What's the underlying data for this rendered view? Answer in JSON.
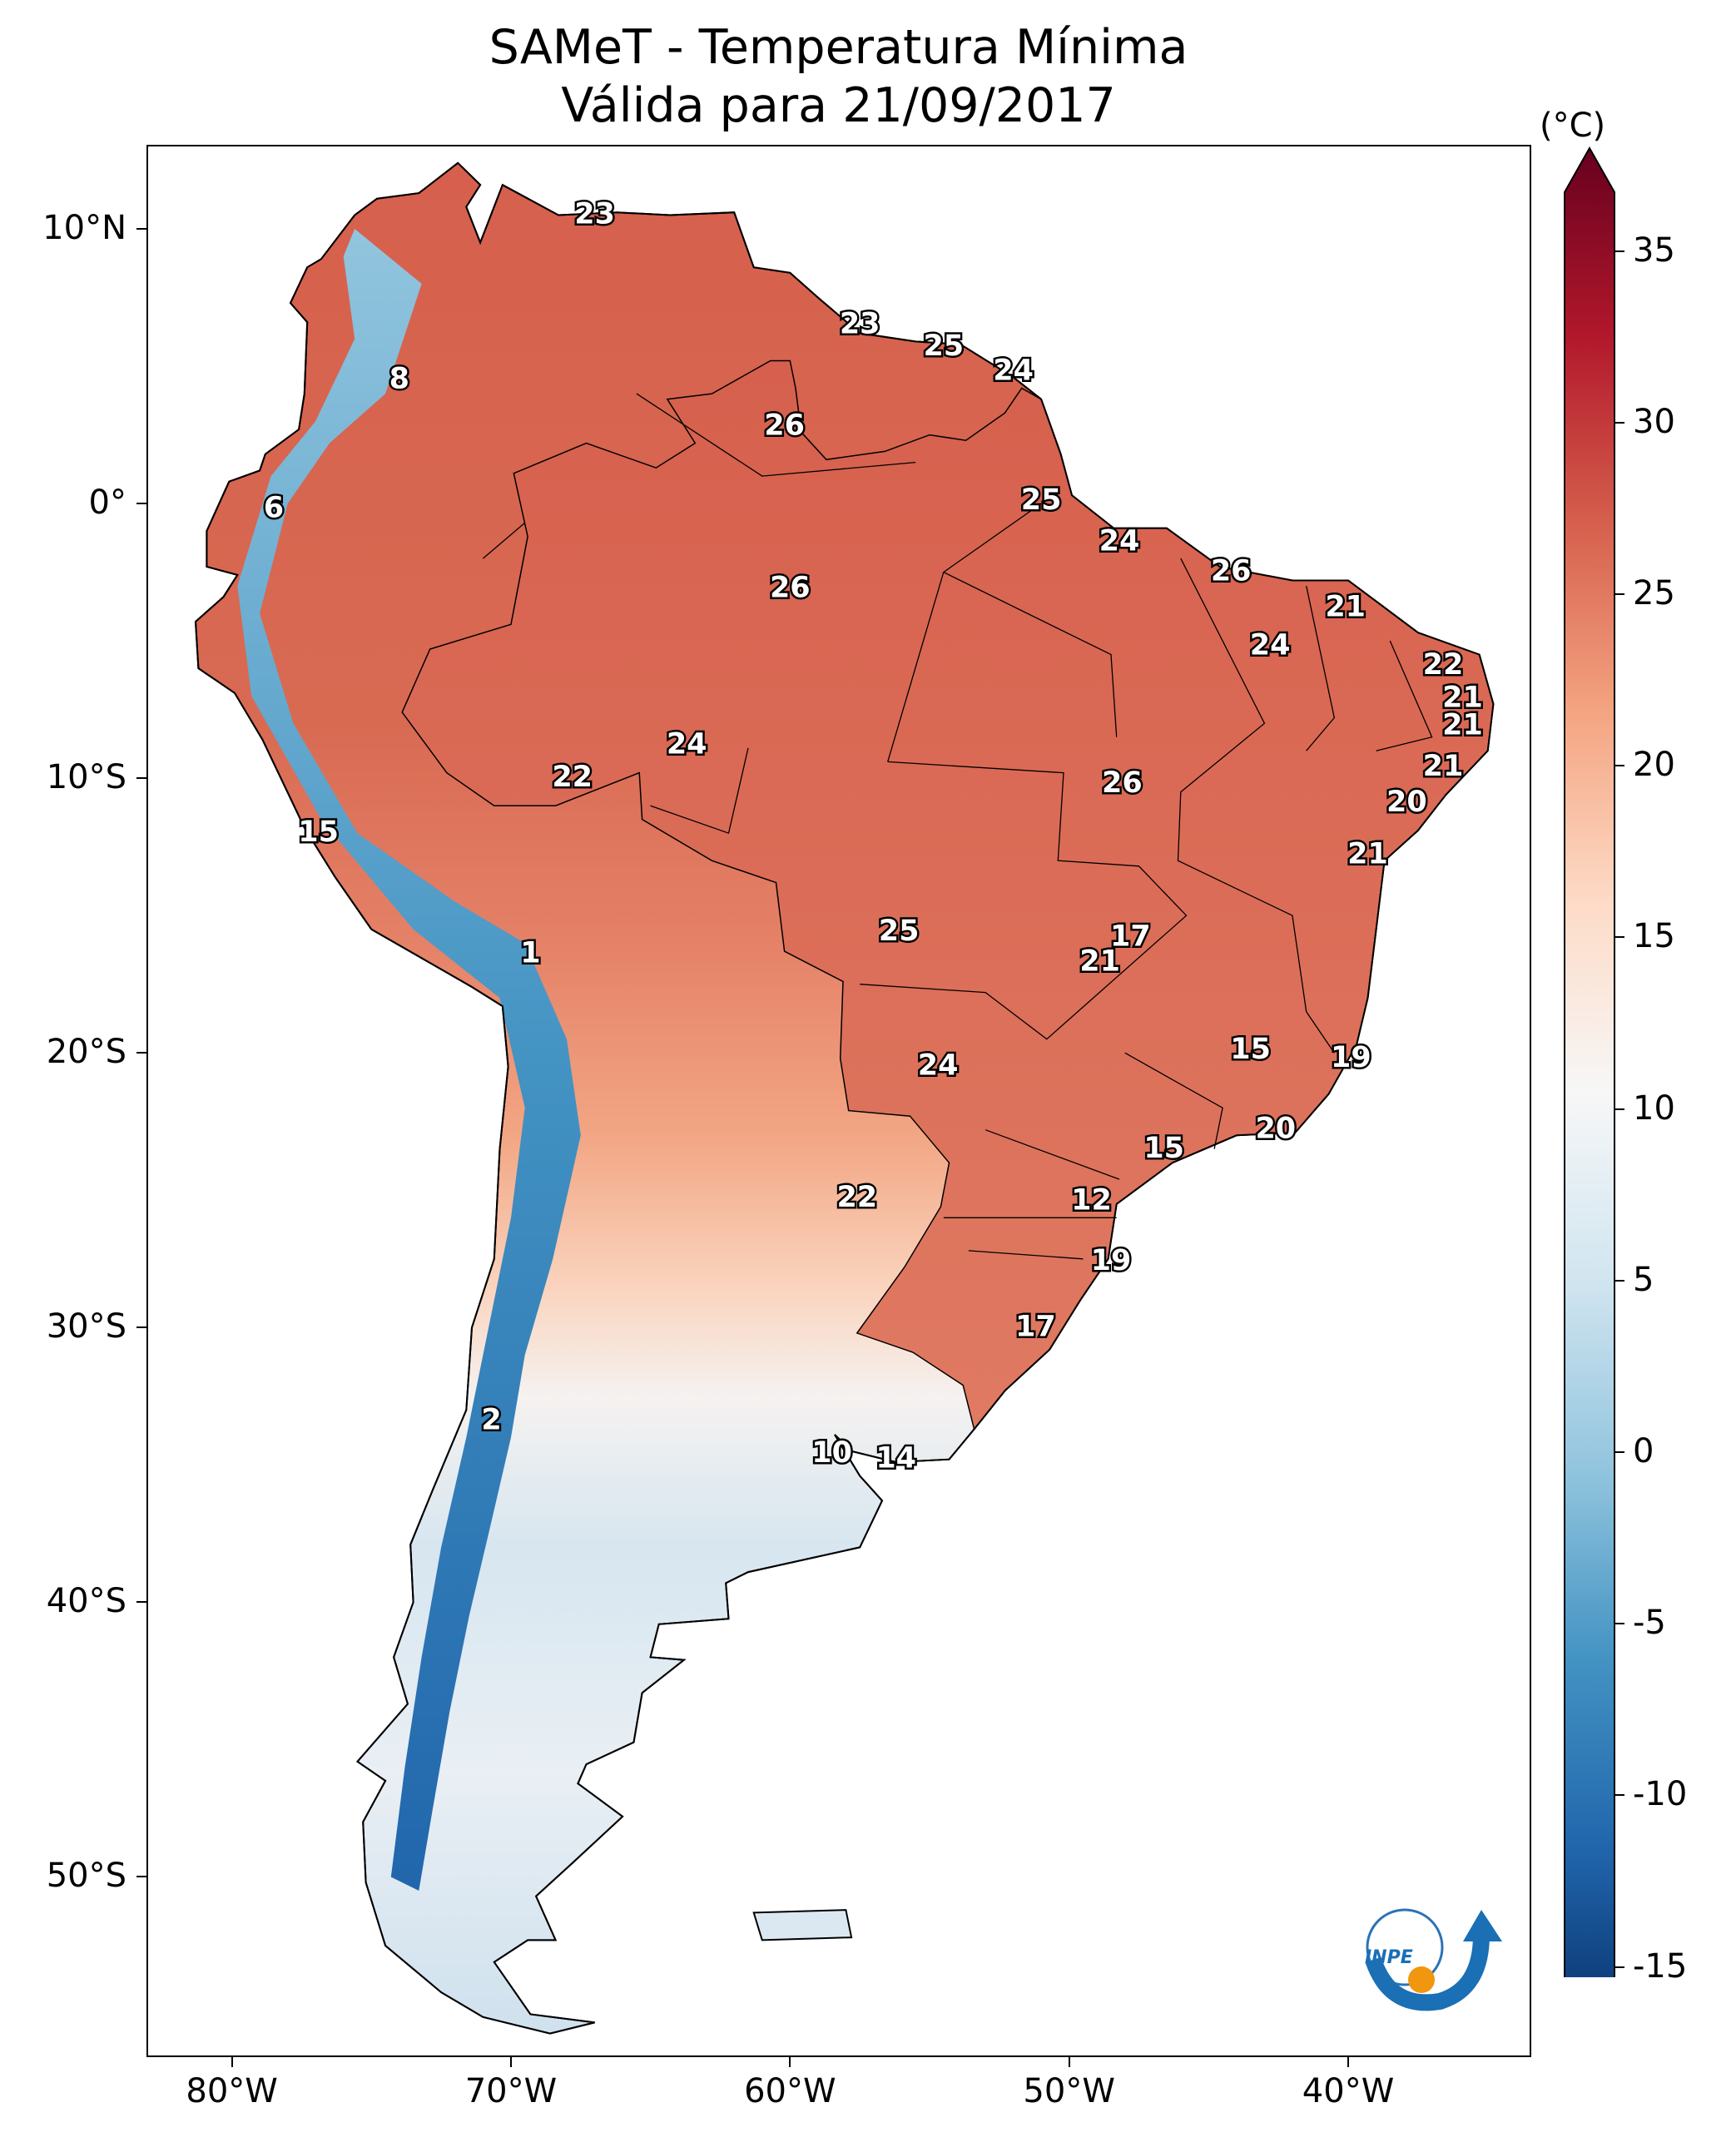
{
  "title": {
    "line1": "SAMeT - Temperatura Mínima",
    "line2": "Válida para 21/09/2017"
  },
  "axes": {
    "lat_labels": [
      "10°N",
      "0°",
      "10°S",
      "20°S",
      "30°S",
      "40°S",
      "50°S"
    ],
    "lon_labels": [
      "80°W",
      "70°W",
      "60°W",
      "50°W",
      "40°W"
    ]
  },
  "colorbar": {
    "unit": "(°C)",
    "min": -17,
    "max": 38,
    "ticks": [
      "35",
      "30",
      "25",
      "20",
      "15",
      "10",
      "5",
      "0",
      "-5",
      "-10",
      "-15"
    ],
    "tick_values": [
      35,
      30,
      25,
      20,
      15,
      10,
      5,
      0,
      -5,
      -10,
      -15
    ],
    "colors": [
      "#08306b",
      "#2166ac",
      "#4393c3",
      "#92c5de",
      "#d1e5f0",
      "#f7f7f7",
      "#fddbc7",
      "#f4a582",
      "#d6604d",
      "#b2182b",
      "#67001f"
    ]
  },
  "map_extent": {
    "lon_min": -83,
    "lon_max": -33.5,
    "lat_min": -56.5,
    "lat_max": 13
  },
  "stations": [
    {
      "lon": -67,
      "lat": 10.5,
      "value": "23"
    },
    {
      "lon": -74,
      "lat": 4.5,
      "value": "8"
    },
    {
      "lon": -78.5,
      "lat": -0.2,
      "value": "6"
    },
    {
      "lon": -57.5,
      "lat": 6.5,
      "value": "23"
    },
    {
      "lon": -54.5,
      "lat": 5.7,
      "value": "25"
    },
    {
      "lon": -52,
      "lat": 4.8,
      "value": "24"
    },
    {
      "lon": -60.2,
      "lat": 2.8,
      "value": "26"
    },
    {
      "lon": -51,
      "lat": 0.1,
      "value": "25"
    },
    {
      "lon": -48.2,
      "lat": -1.4,
      "value": "24"
    },
    {
      "lon": -44.2,
      "lat": -2.5,
      "value": "26"
    },
    {
      "lon": -60,
      "lat": -3.1,
      "value": "26"
    },
    {
      "lon": -40.1,
      "lat": -3.8,
      "value": "21"
    },
    {
      "lon": -42.8,
      "lat": -5.2,
      "value": "24"
    },
    {
      "lon": -36.6,
      "lat": -5.9,
      "value": "22"
    },
    {
      "lon": -35.9,
      "lat": -7.1,
      "value": "21"
    },
    {
      "lon": -35.9,
      "lat": -8.1,
      "value": "21"
    },
    {
      "lon": -36.6,
      "lat": -9.6,
      "value": "21"
    },
    {
      "lon": -37.9,
      "lat": -10.9,
      "value": "20"
    },
    {
      "lon": -39.3,
      "lat": -12.8,
      "value": "21"
    },
    {
      "lon": -63.7,
      "lat": -8.8,
      "value": "24"
    },
    {
      "lon": -67.8,
      "lat": -10,
      "value": "22"
    },
    {
      "lon": -48.1,
      "lat": -10.2,
      "value": "26"
    },
    {
      "lon": -76.9,
      "lat": -12,
      "value": "15"
    },
    {
      "lon": -69.3,
      "lat": -16.4,
      "value": "1"
    },
    {
      "lon": -56.1,
      "lat": -15.6,
      "value": "25"
    },
    {
      "lon": -47.8,
      "lat": -15.8,
      "value": "17"
    },
    {
      "lon": -48.9,
      "lat": -16.7,
      "value": "21"
    },
    {
      "lon": -43.5,
      "lat": -19.9,
      "value": "15"
    },
    {
      "lon": -39.9,
      "lat": -20.2,
      "value": "19"
    },
    {
      "lon": -54.7,
      "lat": -20.5,
      "value": "24"
    },
    {
      "lon": -42.6,
      "lat": -22.8,
      "value": "20"
    },
    {
      "lon": -46.6,
      "lat": -23.5,
      "value": "15"
    },
    {
      "lon": -57.6,
      "lat": -25.3,
      "value": "22"
    },
    {
      "lon": -49.2,
      "lat": -25.4,
      "value": "12"
    },
    {
      "lon": -48.5,
      "lat": -27.6,
      "value": "19"
    },
    {
      "lon": -51.2,
      "lat": -30,
      "value": "17"
    },
    {
      "lon": -70.7,
      "lat": -33.4,
      "value": "2"
    },
    {
      "lon": -58.5,
      "lat": -34.6,
      "value": "10"
    },
    {
      "lon": -56.2,
      "lat": -34.8,
      "value": "14"
    }
  ]
}
